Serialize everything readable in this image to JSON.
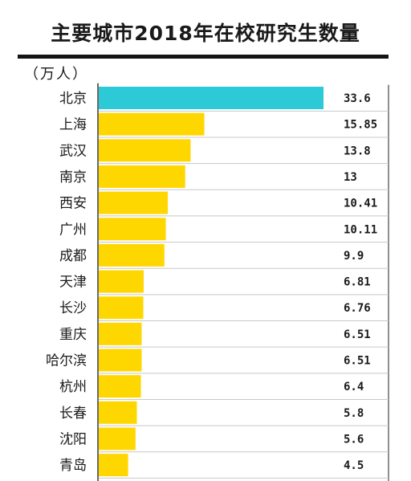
{
  "colors": {
    "highlight": "#2CC9D6",
    "bar": "#FFD700",
    "axis": "#6a6a6a",
    "rowline": "#c8c8c8"
  },
  "chart_data": {
    "type": "bar",
    "orientation": "horizontal",
    "title": "主要城市2018年在校研究生数量",
    "unit": "（万人）",
    "categories": [
      "北京",
      "上海",
      "武汉",
      "南京",
      "西安",
      "广州",
      "成都",
      "天津",
      "长沙",
      "重庆",
      "哈尔滨",
      "杭州",
      "长春",
      "沈阳",
      "青岛"
    ],
    "values": [
      33.6,
      15.85,
      13.8,
      13,
      10.41,
      10.11,
      9.9,
      6.81,
      6.76,
      6.51,
      6.51,
      6.4,
      5.8,
      5.6,
      4.5
    ],
    "value_labels": [
      "33.6",
      "15.85",
      "13.8",
      "13",
      "10.41",
      "10.11",
      "9.9",
      "6.81",
      "6.76",
      "6.51",
      "6.51",
      "6.4",
      "5.8",
      "5.6",
      "4.5"
    ],
    "highlight_index": 0,
    "grid": false,
    "legend": "none"
  }
}
